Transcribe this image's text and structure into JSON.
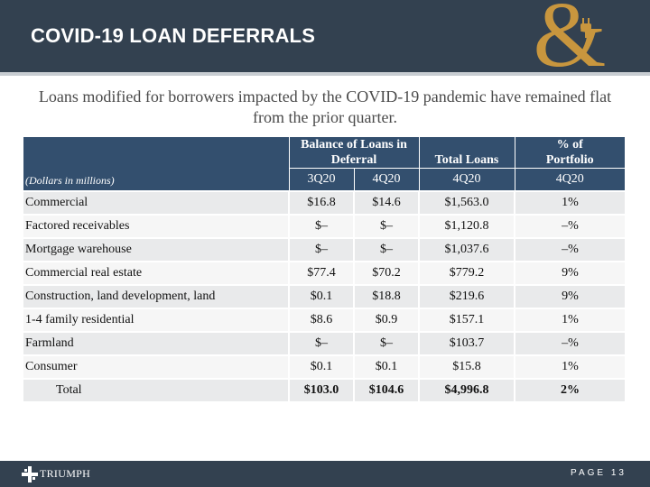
{
  "header": {
    "title": "COVID-19 LOAN DEFERRALS",
    "logo_glyph": "&",
    "accent_color": "#c8963e",
    "bar_color": "#334150"
  },
  "subtitle": "Loans modified for borrowers impacted by the COVID-19 pandemic have remained flat from the prior quarter.",
  "table": {
    "header_color": "#334f6e",
    "units_label": "(Dollars in millions)",
    "group_headers": {
      "balance": "Balance of Loans in Deferral",
      "total_loans": "Total Loans",
      "pct_portfolio": "% of Portfolio"
    },
    "period_headers": [
      "3Q20",
      "4Q20",
      "4Q20",
      "4Q20"
    ],
    "rows": [
      {
        "label": "Commercial",
        "q3": "$16.8",
        "q4": "$14.6",
        "total": "$1,563.0",
        "pct": "1%"
      },
      {
        "label": "Factored receivables",
        "q3": "$–",
        "q4": "$–",
        "total": "$1,120.8",
        "pct": "–%"
      },
      {
        "label": "Mortgage warehouse",
        "q3": "$–",
        "q4": "$–",
        "total": "$1,037.6",
        "pct": "–%"
      },
      {
        "label": "Commercial real estate",
        "q3": "$77.4",
        "q4": "$70.2",
        "total": "$779.2",
        "pct": "9%"
      },
      {
        "label": "Construction, land development, land",
        "q3": "$0.1",
        "q4": "$18.8",
        "total": "$219.6",
        "pct": "9%"
      },
      {
        "label": "1-4 family residential",
        "q3": "$8.6",
        "q4": "$0.9",
        "total": "$157.1",
        "pct": "1%"
      },
      {
        "label": "Farmland",
        "q3": "$–",
        "q4": "$–",
        "total": "$103.7",
        "pct": "–%"
      },
      {
        "label": "Consumer",
        "q3": "$0.1",
        "q4": "$0.1",
        "total": "$15.8",
        "pct": "1%"
      }
    ],
    "total_row": {
      "label": "Total",
      "q3": "$103.0",
      "q4": "$104.6",
      "total": "$4,996.8",
      "pct": "2%"
    }
  },
  "footer": {
    "brand": "TRIUMPH",
    "page_label": "PAGE 13"
  }
}
